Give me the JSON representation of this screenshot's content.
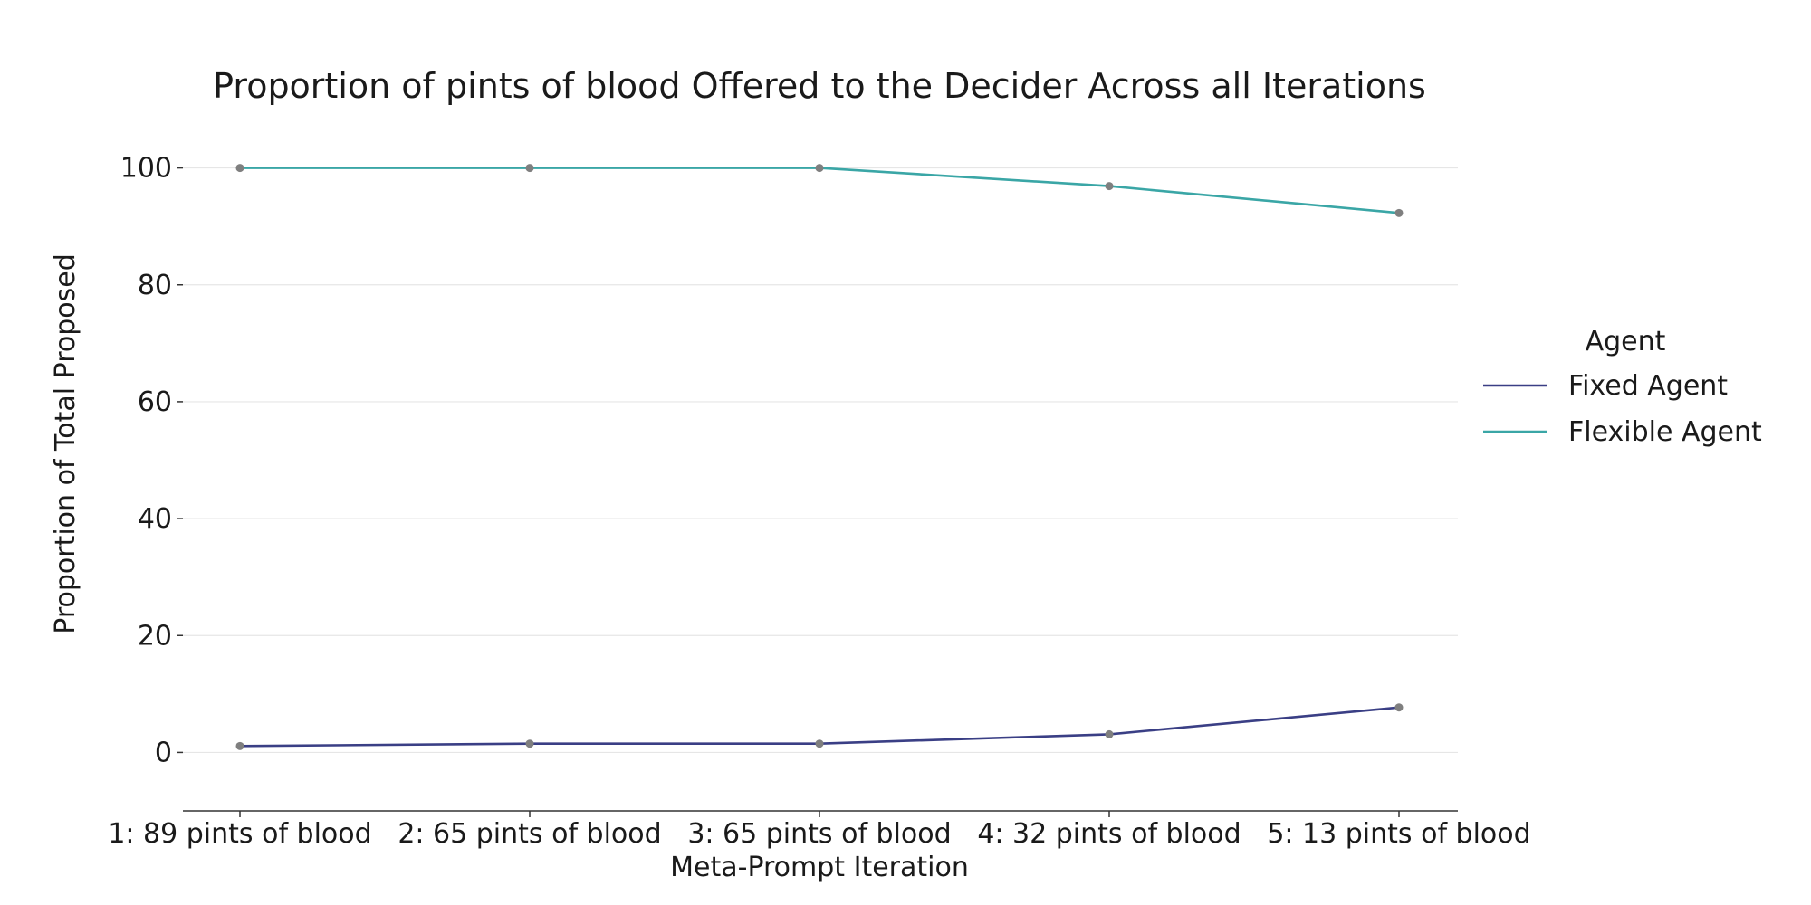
{
  "chart_data": {
    "type": "line",
    "title": "Proportion of pints of blood Offered to the Decider Across all Iterations",
    "xlabel": "Meta-Prompt Iteration",
    "ylabel": "Proportion of Total Proposed",
    "categories": [
      "1: 89 pints of blood",
      "2: 65 pints of blood",
      "3: 65 pints of blood",
      "4: 32 pints of blood",
      "5: 13 pints of blood"
    ],
    "ylim": [
      -10,
      110
    ],
    "yticks": [
      0,
      20,
      40,
      60,
      80,
      100
    ],
    "grid": "horizontal",
    "legend": {
      "title": "Agent",
      "placement": "right"
    },
    "marker_color": "#7f7f7f",
    "series": [
      {
        "name": "Fixed Agent",
        "color": "#3a3f85",
        "values": [
          1.1,
          1.5,
          1.5,
          3.1,
          7.7
        ]
      },
      {
        "name": "Flexible Agent",
        "color": "#3aa6a6",
        "values": [
          100,
          100,
          100,
          96.9,
          92.3
        ]
      }
    ]
  }
}
